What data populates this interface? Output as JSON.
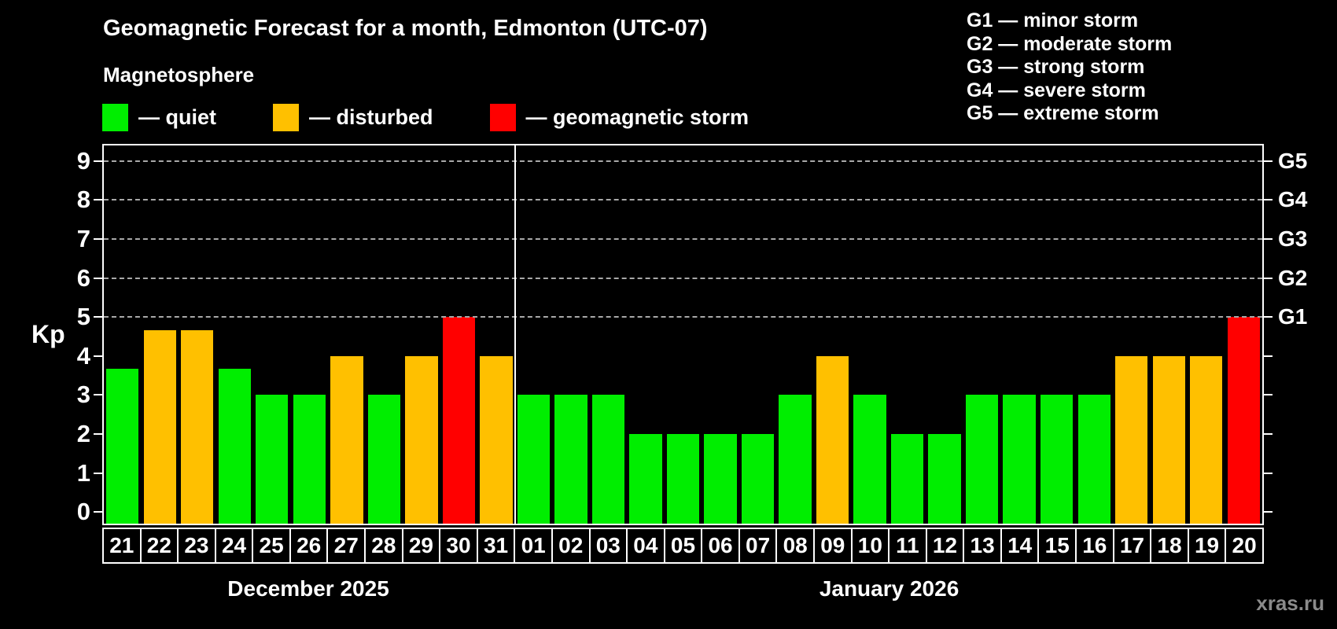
{
  "page": {
    "title": "Geomagnetic Forecast for a month, Edmonton (UTC-07)",
    "subtitle": "Magnetosphere",
    "watermark": "xras.ru"
  },
  "legend": {
    "items": [
      {
        "key": "quiet",
        "label": "— quiet",
        "color": "#00ee00"
      },
      {
        "key": "disturbed",
        "label": "— disturbed",
        "color": "#ffc000"
      },
      {
        "key": "storm",
        "label": "— geomagnetic storm",
        "color": "#ff0000"
      }
    ]
  },
  "g_scale_legend": {
    "items": [
      "G1 — minor storm",
      "G2 — moderate storm",
      "G3 — strong storm",
      "G4 — severe storm",
      "G5 — extreme storm"
    ]
  },
  "chart_data": {
    "type": "bar",
    "title": "Geomagnetic Forecast for a month, Edmonton (UTC-07)",
    "subtitle": "Magnetosphere",
    "ylabel": "Kp",
    "ylim": [
      0,
      9
    ],
    "y_ticks": [
      0,
      1,
      2,
      3,
      4,
      5,
      6,
      7,
      8,
      9
    ],
    "gridlines": {
      "style": "dashed",
      "at": [
        5,
        6,
        7,
        8,
        9
      ]
    },
    "right_axis_labels": [
      {
        "value": 5,
        "label": "G1"
      },
      {
        "value": 6,
        "label": "G2"
      },
      {
        "value": 7,
        "label": "G3"
      },
      {
        "value": 8,
        "label": "G4"
      },
      {
        "value": 9,
        "label": "G5"
      }
    ],
    "colors": {
      "quiet": "#00ee00",
      "disturbed": "#ffc000",
      "storm": "#ff0000"
    },
    "legend_position": "top",
    "months": [
      {
        "label": "December 2025",
        "days": [
          {
            "day": "21",
            "kp": 3.67,
            "status": "quiet"
          },
          {
            "day": "22",
            "kp": 4.67,
            "status": "disturbed"
          },
          {
            "day": "23",
            "kp": 4.67,
            "status": "disturbed"
          },
          {
            "day": "24",
            "kp": 3.67,
            "status": "quiet"
          },
          {
            "day": "25",
            "kp": 3,
            "status": "quiet"
          },
          {
            "day": "26",
            "kp": 3,
            "status": "quiet"
          },
          {
            "day": "27",
            "kp": 4,
            "status": "disturbed"
          },
          {
            "day": "28",
            "kp": 3,
            "status": "quiet"
          },
          {
            "day": "29",
            "kp": 4,
            "status": "disturbed"
          },
          {
            "day": "30",
            "kp": 5,
            "status": "storm"
          },
          {
            "day": "31",
            "kp": 4,
            "status": "disturbed"
          }
        ]
      },
      {
        "label": "January 2026",
        "days": [
          {
            "day": "01",
            "kp": 3,
            "status": "quiet"
          },
          {
            "day": "02",
            "kp": 3,
            "status": "quiet"
          },
          {
            "day": "03",
            "kp": 3,
            "status": "quiet"
          },
          {
            "day": "04",
            "kp": 2,
            "status": "quiet"
          },
          {
            "day": "05",
            "kp": 2,
            "status": "quiet"
          },
          {
            "day": "06",
            "kp": 2,
            "status": "quiet"
          },
          {
            "day": "07",
            "kp": 2,
            "status": "quiet"
          },
          {
            "day": "08",
            "kp": 3,
            "status": "quiet"
          },
          {
            "day": "09",
            "kp": 4,
            "status": "disturbed"
          },
          {
            "day": "10",
            "kp": 3,
            "status": "quiet"
          },
          {
            "day": "11",
            "kp": 2,
            "status": "quiet"
          },
          {
            "day": "12",
            "kp": 2,
            "status": "quiet"
          },
          {
            "day": "13",
            "kp": 3,
            "status": "quiet"
          },
          {
            "day": "14",
            "kp": 3,
            "status": "quiet"
          },
          {
            "day": "15",
            "kp": 3,
            "status": "quiet"
          },
          {
            "day": "16",
            "kp": 3,
            "status": "quiet"
          },
          {
            "day": "17",
            "kp": 4,
            "status": "disturbed"
          },
          {
            "day": "18",
            "kp": 4,
            "status": "disturbed"
          },
          {
            "day": "19",
            "kp": 4,
            "status": "disturbed"
          },
          {
            "day": "20",
            "kp": 5,
            "status": "storm"
          }
        ]
      }
    ]
  }
}
